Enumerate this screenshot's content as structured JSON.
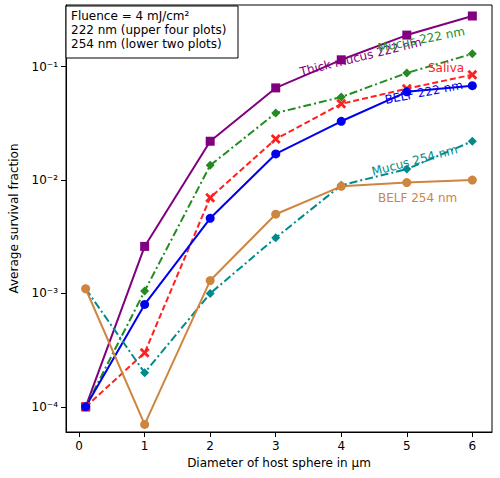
{
  "chart_data": {
    "type": "line",
    "x_label": "Diameter of host sphere in μm",
    "y_label": "Average survival fraction",
    "annotations": [
      "Fluence = 4 mJ/cm²",
      "222 nm (upper four plots)",
      "254 nm (lower two plots)"
    ],
    "x": [
      0.1,
      1,
      2,
      3,
      4,
      5,
      6
    ],
    "xlim": [
      -0.2,
      6.3
    ],
    "xticks": [
      0,
      1,
      2,
      3,
      4,
      5,
      6
    ],
    "ylim": [
      6e-05,
      0.35
    ],
    "yticks": [
      {
        "value": 0.0001,
        "label": "10⁻⁴"
      },
      {
        "value": 0.001,
        "label": "10⁻³"
      },
      {
        "value": 0.01,
        "label": "10⁻²"
      },
      {
        "value": 0.1,
        "label": "10⁻¹"
      }
    ],
    "log": "y",
    "grid": false,
    "series": [
      {
        "name": "Thick mucus 222 nm",
        "color": "#800080",
        "marker": "square",
        "line_style": "solid",
        "values": [
          0.0001,
          0.0026,
          0.022,
          0.065,
          0.115,
          0.19,
          0.28
        ]
      },
      {
        "name": "Mucus 222 nm",
        "color": "#228b22",
        "marker": "diamond",
        "line_style": "dashdot",
        "values": [
          0.0001,
          0.00105,
          0.0135,
          0.039,
          0.054,
          0.088,
          0.13
        ]
      },
      {
        "name": "Saliva",
        "color": "#ff2020",
        "marker": "x",
        "line_style": "dashed",
        "values": [
          0.0001,
          0.0003,
          0.007,
          0.023,
          0.047,
          0.064,
          0.085
        ]
      },
      {
        "name": "BELF 222 nm",
        "color": "#0000ee",
        "marker": "circle",
        "line_style": "solid",
        "values": [
          0.0001,
          0.0008,
          0.0046,
          0.017,
          0.033,
          0.06,
          0.068
        ]
      },
      {
        "name": "Mucus 254 nm",
        "color": "#008b8b",
        "marker": "diamond",
        "line_style": "dashdot",
        "values": [
          0.0011,
          0.0002,
          0.001,
          0.0031,
          0.009,
          0.0125,
          0.022
        ]
      },
      {
        "name": "BELF 254 nm",
        "color": "#cd853f",
        "marker": "circle",
        "line_style": "solid",
        "values": [
          0.0011,
          7e-05,
          0.0013,
          0.005,
          0.0088,
          0.0095,
          0.01
        ]
      }
    ]
  }
}
